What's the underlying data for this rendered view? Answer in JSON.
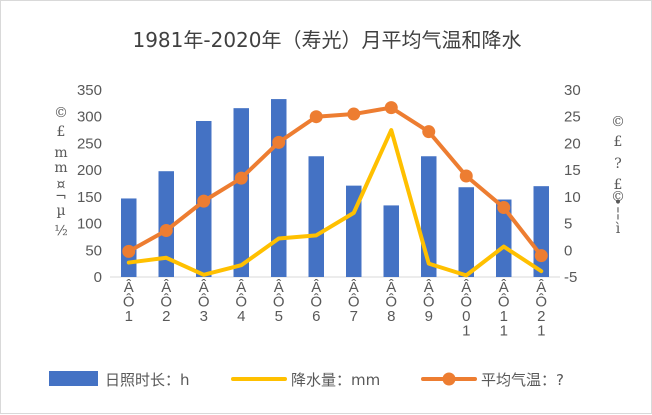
{
  "chart_data": {
    "type": "bar+line",
    "title": "1981年-2020年（寿光）月平均气温和降水",
    "categories": [
      [
        "Â",
        "Ô",
        "1"
      ],
      [
        "Â",
        "Ô",
        "2"
      ],
      [
        "Â",
        "Ô",
        "3"
      ],
      [
        "Â",
        "Ô",
        "4"
      ],
      [
        "Â",
        "Ô",
        "5"
      ],
      [
        "Â",
        "Ô",
        "6"
      ],
      [
        "Â",
        "Ô",
        "7"
      ],
      [
        "Â",
        "Ô",
        "8"
      ],
      [
        "Â",
        "Ô",
        "9"
      ],
      [
        "Â",
        "Ô",
        "0",
        "1"
      ],
      [
        "Â",
        "Ô",
        "1",
        "1"
      ],
      [
        "Â",
        "Ô",
        "2",
        "1"
      ]
    ],
    "left_axis": {
      "min": 0,
      "max": 350,
      "step": 50,
      "ticks": [
        "0",
        "50",
        "100",
        "150",
        "200",
        "250",
        "300",
        "350"
      ],
      "label_chars": [
        "©",
        "£",
        "m",
        "m",
        "¤",
        "¬",
        "µ",
        "½"
      ]
    },
    "right_axis": {
      "min": -5,
      "max": 30,
      "step": 5,
      "ticks": [
        "-5",
        "0",
        "5",
        "10",
        "15",
        "20",
        "25",
        "30"
      ],
      "label_chars": [
        "©",
        "£",
        "?",
        "£",
        "©",
        "•",
        "¦",
        "ì"
      ]
    },
    "series": [
      {
        "name": "日照时长：h",
        "kind": "bar",
        "axis": "left",
        "color": "#4472C4",
        "values": [
          147,
          198,
          292,
          316,
          333,
          226,
          171,
          134,
          226,
          168,
          145,
          170
        ]
      },
      {
        "name": "降水量：mm",
        "kind": "line",
        "axis": "left",
        "color": "#FFC000",
        "values": [
          27,
          36,
          4,
          22,
          72,
          78,
          120,
          275,
          25,
          3,
          57,
          11
        ]
      },
      {
        "name": "平均气温：?",
        "kind": "line-marker",
        "axis": "right",
        "color": "#ED7D31",
        "values": [
          -0.2,
          3.7,
          9.2,
          13.5,
          20.2,
          25,
          25.5,
          26.7,
          22.2,
          13.9,
          8,
          -1
        ]
      }
    ],
    "legend_position": "bottom",
    "grid": false
  }
}
